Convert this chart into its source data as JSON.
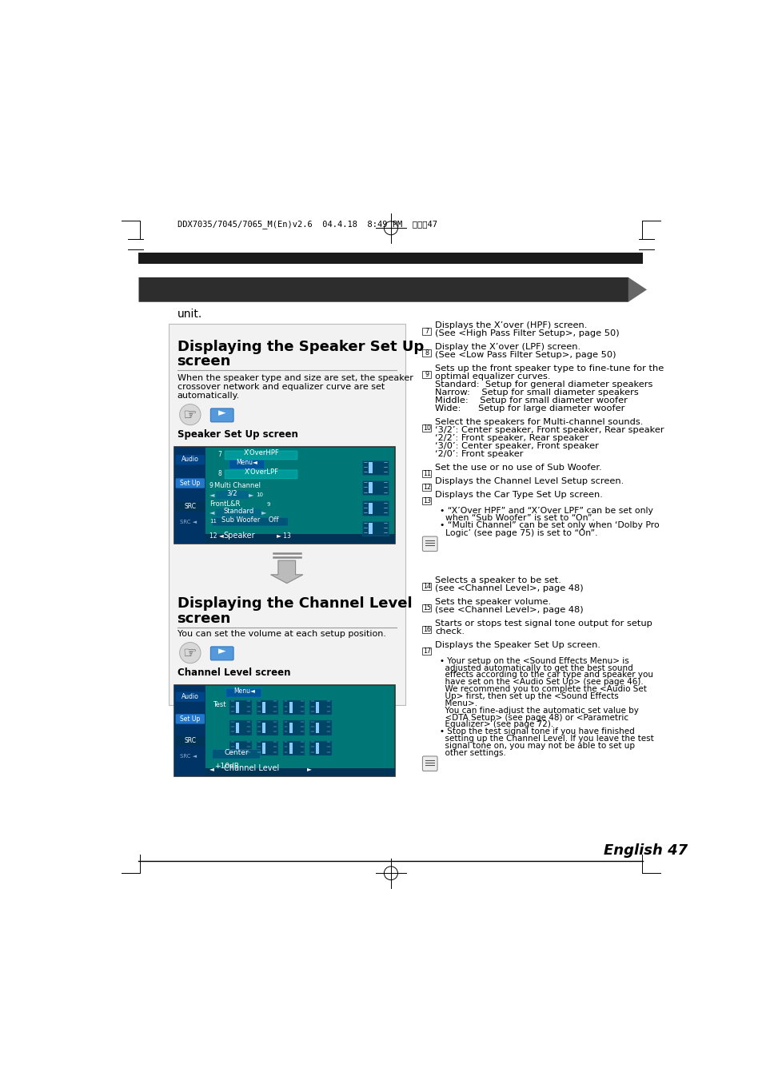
{
  "page_bg": "#ffffff",
  "header_bar_color": "#1a1a1a",
  "top_label": "DDX7035/7045/7065_M(En)v2.6  04.4.18  8:49 PM  ページ47",
  "footer_text": "English 47",
  "screen_label1": "Speaker Set Up screen",
  "screen_label2": "Channel Level screen",
  "desc1_lines": [
    "When the speaker type and size are set, the speaker",
    "crossover network and equalizer curve are set",
    "automatically."
  ],
  "desc2": "You can set the volume at each setup position.",
  "title1_line1": "Displaying the Speaker Set Up",
  "title1_line2": "screen",
  "title2_line1": "Displaying the Channel Level",
  "title2_line2": "screen",
  "right_items": [
    {
      "num": "7",
      "text": "Displays the X’over (HPF) screen.\n(See <High Pass Filter Setup>, page 50)"
    },
    {
      "num": "8",
      "text": "Display the X’over (LPF) screen.\n(See <Low Pass Filter Setup>, page 50)"
    },
    {
      "num": "9",
      "text": "Sets up the front speaker type to fine-tune for the\noptimal equalizer curves.\nStandard:  Setup for general diameter speakers\nNarrow:    Setup for small diameter speakers\nMiddle:    Setup for small diameter woofer\nWide:      Setup for large diameter woofer"
    },
    {
      "num": "10",
      "text": "Select the speakers for Multi-channel sounds.\n‘3/2’: Center speaker, Front speaker, Rear speaker\n‘2/2’: Front speaker, Rear speaker\n‘3/0’: Center speaker, Front speaker\n‘2/0’: Front speaker"
    },
    {
      "num": "11",
      "text": "Set the use or no use of Sub Woofer."
    },
    {
      "num": "12",
      "text": "Displays the Channel Level Setup screen."
    },
    {
      "num": "13",
      "text": "Displays the Car Type Set Up screen."
    }
  ],
  "right_items2": [
    {
      "num": "14",
      "text": "Selects a speaker to be set.\n(see <Channel Level>, page 48)"
    },
    {
      "num": "15",
      "text": "Sets the speaker volume.\n(see <Channel Level>, page 48)"
    },
    {
      "num": "16",
      "text": "Starts or stops test signal tone output for setup\ncheck."
    },
    {
      "num": "17",
      "text": "Displays the Speaker Set Up screen."
    }
  ],
  "note1_lines": [
    "• “X’Over HPF” and “X’Over LPF” can be set only",
    "  when “Sub Woofer” is set to “On”.",
    "• “Multi Channel” can be set only when ‘Dolby Pro",
    "  Logic’ (see page 75) is set to “On”."
  ],
  "note2_lines": [
    "• Your setup on the <Sound Effects Menu> is",
    "  adjusted automatically to get the best sound",
    "  effects according to the car type and speaker you",
    "  have set on the <Audio Set Up> (see page 46).",
    "  We recommend you to complete the <Audio Set",
    "  Up> first, then set up the <Sound Effects",
    "  Menu>.",
    "  You can fine-adjust the automatic set value by",
    "  <DTA Setup> (see page 48) or <Parametric",
    "  Equalizer> (see page 72).",
    "• Stop the test signal tone if you have finished",
    "  setting up the Channel Level. If you leave the test",
    "  signal tone on, you may not be able to set up",
    "  other settings."
  ]
}
